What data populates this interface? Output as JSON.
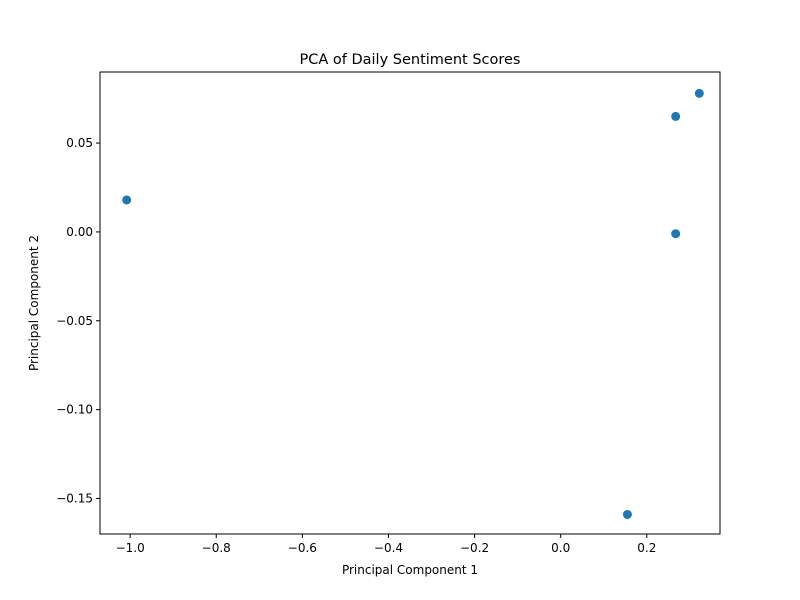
{
  "chart_data": {
    "type": "scatter",
    "title": "PCA of Daily Sentiment Scores",
    "xlabel": "Principal Component 1",
    "ylabel": "Principal Component 2",
    "xlim": [
      -1.07,
      0.37
    ],
    "ylim": [
      -0.17,
      0.09
    ],
    "x_ticks": [
      -1.0,
      -0.8,
      -0.6,
      -0.4,
      -0.2,
      0.0,
      0.2
    ],
    "x_tick_labels": [
      "−1.0",
      "−0.8",
      "−0.6",
      "−0.4",
      "−0.2",
      "0.0",
      "0.2"
    ],
    "y_ticks": [
      -0.15,
      -0.1,
      -0.05,
      0.0,
      0.05
    ],
    "y_tick_labels": [
      "−0.15",
      "−0.10",
      "−0.05",
      "0.00",
      "0.05"
    ],
    "grid": false,
    "marker_color": "#1f77b4",
    "points": [
      {
        "x": -1.008,
        "y": 0.018
      },
      {
        "x": 0.155,
        "y": -0.159
      },
      {
        "x": 0.267,
        "y": -0.001
      },
      {
        "x": 0.267,
        "y": 0.065
      },
      {
        "x": 0.322,
        "y": 0.078
      }
    ]
  }
}
